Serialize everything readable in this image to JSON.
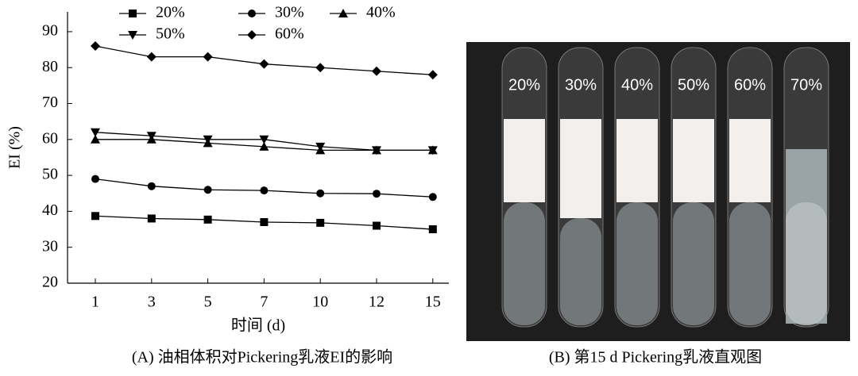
{
  "chart_data": {
    "type": "line",
    "x_label": "时间 (d)",
    "y_label": "EI (%)",
    "categories": [
      "1",
      "3",
      "5",
      "7",
      "10",
      "12",
      "15"
    ],
    "series": [
      {
        "name": "20%",
        "color": "#000000",
        "marker": "square",
        "values": [
          38.7,
          38,
          37.7,
          37,
          36.8,
          36,
          35
        ]
      },
      {
        "name": "30%",
        "color": "#000000",
        "marker": "circle",
        "values": [
          49,
          47,
          46,
          45.8,
          45,
          44.9,
          44
        ]
      },
      {
        "name": "40%",
        "color": "#000000",
        "marker": "triangle-up",
        "values": [
          60,
          60,
          59,
          58,
          57,
          57,
          57
        ]
      },
      {
        "name": "50%",
        "color": "#000000",
        "marker": "triangle-down",
        "values": [
          62,
          61,
          60,
          60,
          58,
          57,
          57
        ]
      },
      {
        "name": "60%",
        "color": "#000000",
        "marker": "diamond",
        "values": [
          86,
          83,
          83,
          81,
          80,
          79,
          78
        ]
      }
    ],
    "ylim": [
      20,
      95.5
    ],
    "yticks": [
      20,
      30,
      40,
      50,
      60,
      70,
      80,
      90
    ],
    "grid": false
  },
  "photo": {
    "tube_labels": [
      "20%",
      "30%",
      "40%",
      "50%",
      "60%",
      "70%"
    ]
  },
  "captions": {
    "a": "(A) 油相体积对Pickering乳液EI的影响",
    "b": "(B) 第15 d Pickering乳液直观图"
  }
}
